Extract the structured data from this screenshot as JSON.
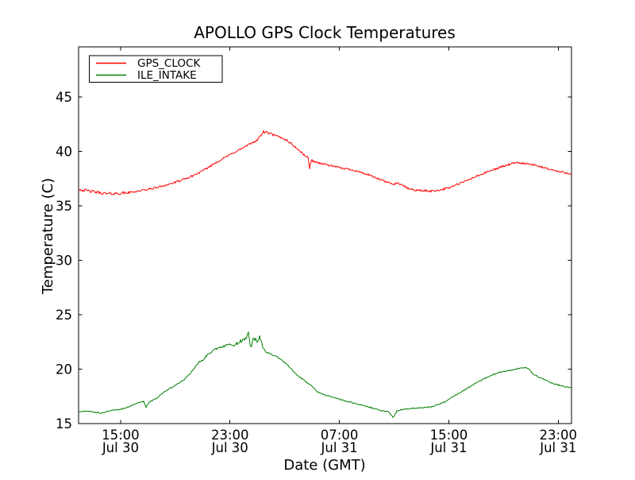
{
  "chart_data": {
    "type": "line",
    "title": "APOLLO GPS Clock Temperatures",
    "xlabel": "Date (GMT)",
    "ylabel": "Temperature (C)",
    "x_unit": "hours since Jul 30 00:00 GMT",
    "xlim": [
      11.93,
      47.97
    ],
    "ylim": [
      15,
      49.6
    ],
    "grid": false,
    "legend_position": "upper left",
    "yticks": [
      15,
      20,
      25,
      30,
      35,
      40,
      45
    ],
    "xticks": [
      {
        "x": 15,
        "time": "15:00",
        "date": "Jul 30"
      },
      {
        "x": 23,
        "time": "23:00",
        "date": "Jul 30"
      },
      {
        "x": 31,
        "time": "07:00",
        "date": "Jul 31"
      },
      {
        "x": 39,
        "time": "15:00",
        "date": "Jul 31"
      },
      {
        "x": 47,
        "time": "23:00",
        "date": "Jul 31"
      }
    ],
    "series": [
      {
        "name": "GPS_CLOCK",
        "color": "#ff0000",
        "noise": {
          "base": 0.09,
          "bursts": [
            [
              12,
              15.5,
              0.13
            ],
            [
              25,
              27.2,
              0.11
            ]
          ],
          "seed": 42
        },
        "points": [
          [
            12,
            36.5
          ],
          [
            12.5,
            36.4
          ],
          [
            13,
            36.3
          ],
          [
            13.5,
            36.2
          ],
          [
            14,
            36.1
          ],
          [
            15,
            36.15
          ],
          [
            15.5,
            36.2
          ],
          [
            16,
            36.3
          ],
          [
            17,
            36.5
          ],
          [
            18,
            36.8
          ],
          [
            19,
            37.15
          ],
          [
            20,
            37.6
          ],
          [
            21,
            38.2
          ],
          [
            22,
            39.0
          ],
          [
            23,
            39.7
          ],
          [
            24,
            40.35
          ],
          [
            25,
            41.05
          ],
          [
            25.45,
            41.8
          ],
          [
            25.8,
            41.7
          ],
          [
            26,
            41.6
          ],
          [
            26.5,
            41.35
          ],
          [
            27,
            41.15
          ],
          [
            27.5,
            40.7
          ],
          [
            28,
            40.15
          ],
          [
            28.4,
            39.7
          ],
          [
            28.72,
            39.4
          ],
          [
            28.82,
            38.45
          ],
          [
            28.95,
            39.2
          ],
          [
            29.3,
            39.0
          ],
          [
            30,
            38.8
          ],
          [
            31,
            38.5
          ],
          [
            32,
            38.3
          ],
          [
            33,
            37.9
          ],
          [
            33.5,
            37.65
          ],
          [
            34,
            37.4
          ],
          [
            34.5,
            37.15
          ],
          [
            35,
            37.0
          ],
          [
            35.3,
            37.1
          ],
          [
            35.6,
            36.9
          ],
          [
            36,
            36.6
          ],
          [
            36.5,
            36.45
          ],
          [
            37,
            36.4
          ],
          [
            37.7,
            36.35
          ],
          [
            38.3,
            36.45
          ],
          [
            39,
            36.65
          ],
          [
            40,
            37.15
          ],
          [
            41,
            37.7
          ],
          [
            42,
            38.2
          ],
          [
            43,
            38.65
          ],
          [
            43.7,
            38.9
          ],
          [
            44.2,
            38.95
          ],
          [
            45,
            38.8
          ],
          [
            46,
            38.5
          ],
          [
            47,
            38.15
          ],
          [
            47.97,
            37.95
          ]
        ]
      },
      {
        "name": "ILE_INTAKE",
        "color": "#007f00",
        "noise": {
          "base": 0.05,
          "bursts": [
            [
              20.5,
              23.2,
              0.09
            ],
            [
              23.2,
              25.5,
              0.16
            ]
          ],
          "seed": 1337
        },
        "points": [
          [
            12,
            16.1
          ],
          [
            12.6,
            16.15
          ],
          [
            13.1,
            16.05
          ],
          [
            13.6,
            15.95
          ],
          [
            14.1,
            16.15
          ],
          [
            15,
            16.3
          ],
          [
            15.5,
            16.5
          ],
          [
            16.1,
            16.8
          ],
          [
            16.7,
            17.05
          ],
          [
            16.87,
            16.5
          ],
          [
            17.1,
            17.0
          ],
          [
            17.6,
            17.3
          ],
          [
            18.4,
            18.1
          ],
          [
            19,
            18.5
          ],
          [
            19.6,
            19.0
          ],
          [
            20.1,
            19.6
          ],
          [
            20.7,
            20.6
          ],
          [
            21.05,
            20.9
          ],
          [
            21.3,
            21.25
          ],
          [
            21.9,
            21.8
          ],
          [
            22.45,
            22.05
          ],
          [
            23.0,
            22.35
          ],
          [
            23.3,
            22.1
          ],
          [
            23.6,
            22.45
          ],
          [
            23.9,
            22.65
          ],
          [
            24.15,
            22.75
          ],
          [
            24.36,
            23.45
          ],
          [
            24.5,
            21.9
          ],
          [
            24.75,
            22.9
          ],
          [
            25.0,
            22.5
          ],
          [
            25.15,
            23.0
          ],
          [
            25.35,
            22.2
          ],
          [
            25.6,
            21.6
          ],
          [
            25.95,
            21.4
          ],
          [
            26.5,
            21.1
          ],
          [
            27.1,
            20.5
          ],
          [
            27.65,
            19.8
          ],
          [
            28.05,
            19.3
          ],
          [
            28.3,
            19.1
          ],
          [
            29.0,
            18.4
          ],
          [
            29.4,
            17.9
          ],
          [
            30.0,
            17.6
          ],
          [
            30.6,
            17.4
          ],
          [
            31.1,
            17.2
          ],
          [
            31.7,
            17.0
          ],
          [
            32.3,
            16.8
          ],
          [
            32.9,
            16.6
          ],
          [
            33.5,
            16.4
          ],
          [
            34.05,
            16.2
          ],
          [
            34.6,
            16.1
          ],
          [
            34.93,
            15.55
          ],
          [
            35.2,
            16.15
          ],
          [
            35.8,
            16.35
          ],
          [
            37.0,
            16.45
          ],
          [
            37.8,
            16.55
          ],
          [
            38.7,
            17.0
          ],
          [
            39.1,
            17.3
          ],
          [
            39.9,
            17.9
          ],
          [
            41.0,
            18.75
          ],
          [
            41.9,
            19.3
          ],
          [
            42.75,
            19.75
          ],
          [
            43.65,
            19.9
          ],
          [
            44.4,
            20.15
          ],
          [
            44.8,
            20.1
          ],
          [
            45.1,
            19.6
          ],
          [
            45.7,
            19.2
          ],
          [
            46.55,
            18.7
          ],
          [
            47.4,
            18.4
          ],
          [
            47.97,
            18.3
          ]
        ]
      }
    ]
  }
}
